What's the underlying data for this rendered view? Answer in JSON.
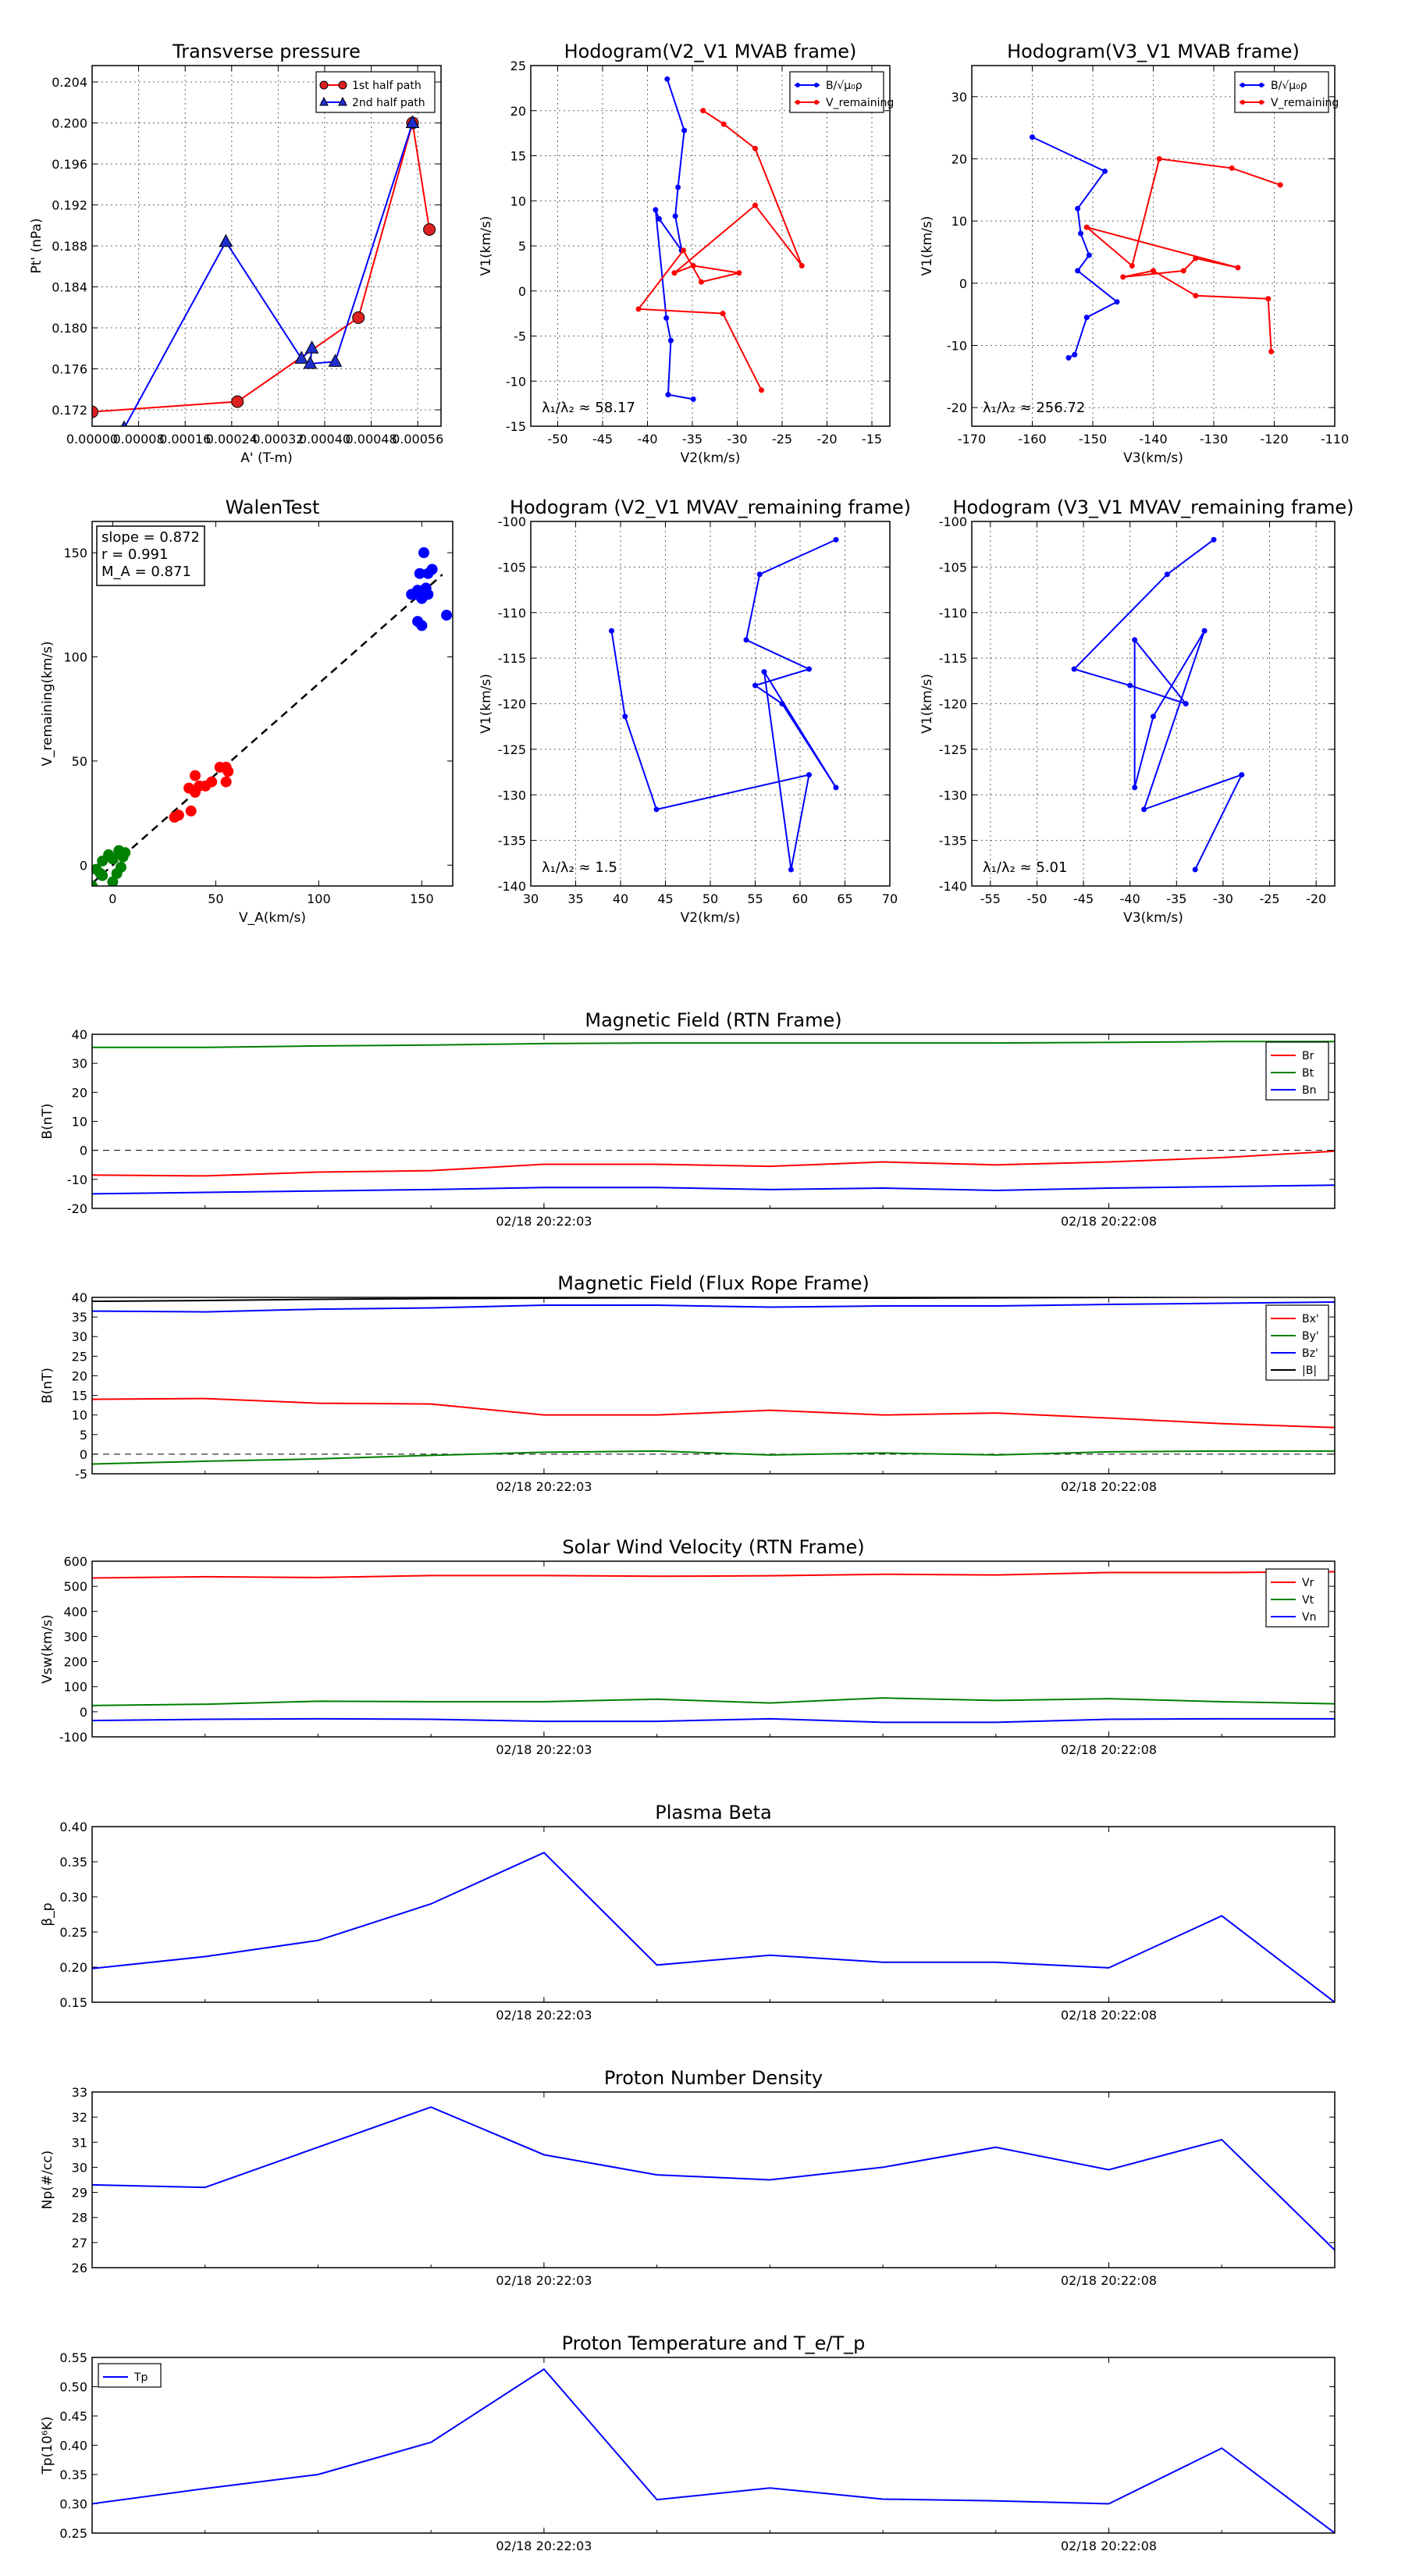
{
  "chart_data": [
    {
      "id": "tp",
      "type": "line",
      "title": "Transverse pressure",
      "xlabel": "A' (T-m)",
      "ylabel": "Pt' (nPa)",
      "xlim": [
        0.0,
        0.0006
      ],
      "ylim": [
        0.1704,
        0.2056
      ],
      "xticks": [
        "0.00000",
        "0.00008",
        "0.00016",
        "0.00024",
        "0.00032",
        "0.00040",
        "0.00048",
        "0.00056"
      ],
      "yticks": [
        "0.172",
        "0.176",
        "0.180",
        "0.184",
        "0.188",
        "0.192",
        "0.196",
        "0.200",
        "0.204"
      ],
      "grid": true,
      "legend": "top-right",
      "series": [
        {
          "name": "1st half path",
          "color": "#ff0000",
          "marker": "circle",
          "x": [
            0.0,
            0.00025,
            0.000458,
            0.000551,
            0.00058
          ],
          "y": [
            0.1718,
            0.1728,
            0.181,
            0.2,
            0.1896
          ]
        },
        {
          "name": "2nd half path",
          "color": "#0000ff",
          "marker": "triangle",
          "x": [
            5.5e-05,
            0.00023,
            0.00036,
            0.000378,
            0.000375,
            0.000418,
            0.000551
          ],
          "y": [
            0.1702,
            0.1884,
            0.177,
            0.178,
            0.1765,
            0.1767,
            0.2
          ]
        }
      ]
    },
    {
      "id": "h1",
      "type": "line",
      "title": "Hodogram(V2_V1 MVAB frame)",
      "xlabel": "V2(km/s)",
      "ylabel": "V1(km/s)",
      "xlim": [
        -53,
        -13
      ],
      "ylim": [
        -15,
        25
      ],
      "xticks": [
        -50,
        -45,
        -40,
        -35,
        -30,
        -25,
        -20,
        -15
      ],
      "yticks": [
        -15,
        -10,
        -5,
        0,
        5,
        10,
        15,
        20,
        25
      ],
      "grid": true,
      "legend": "top-right",
      "annotation": "λ₁/λ₂ ≈ 58.17",
      "series": [
        {
          "name": "B/√μ₀ρ",
          "color": "#0000ff",
          "x": [
            -37.8,
            -35.9,
            -36.6,
            -36.9,
            -36.2,
            -38.7,
            -39.1,
            -37.9,
            -37.4,
            -37.7,
            -34.9
          ],
          "y": [
            23.5,
            17.8,
            11.5,
            8.3,
            4.5,
            8.0,
            9.0,
            -3.0,
            -5.5,
            -11.5,
            -12.0
          ]
        },
        {
          "name": "V_remaining",
          "color": "#ff0000",
          "x": [
            -33.8,
            -31.5,
            -28.0,
            -22.8,
            -28.0,
            -37.0,
            -34.9,
            -29.8,
            -34.0,
            -36.0,
            -41.0,
            -31.6,
            -27.3
          ],
          "y": [
            20.0,
            18.5,
            15.8,
            2.8,
            9.5,
            2.0,
            2.8,
            2.0,
            1.0,
            4.5,
            -2.0,
            -2.5,
            -11.0
          ]
        }
      ]
    },
    {
      "id": "h2",
      "type": "line",
      "title": "Hodogram(V3_V1 MVAB frame)",
      "xlabel": "V3(km/s)",
      "ylabel": "V1(km/s)",
      "xlim": [
        -170,
        -110
      ],
      "ylim": [
        -23,
        35
      ],
      "xticks": [
        -170,
        -160,
        -150,
        -140,
        -130,
        -120,
        -110
      ],
      "yticks": [
        -20,
        -10,
        0,
        10,
        20,
        30
      ],
      "grid": true,
      "legend": "top-right",
      "annotation": "λ₁/λ₂ ≈ 256.72",
      "series": [
        {
          "name": "B/√μ₀ρ",
          "color": "#0000ff",
          "x": [
            -160,
            -148,
            -152.5,
            -152.0,
            -150.6,
            -152.5,
            -146,
            -151,
            -153,
            -154
          ],
          "y": [
            23.5,
            18,
            12,
            8,
            4.5,
            2,
            -3,
            -5.5,
            -11.5,
            -12
          ]
        },
        {
          "name": "V_remaining",
          "color": "#ff0000",
          "x": [
            -119,
            -127,
            -139,
            -143.5,
            -151,
            -126,
            -133,
            -135,
            -145,
            -140,
            -133,
            -121,
            -120.5
          ],
          "y": [
            15.8,
            18.5,
            20,
            2.8,
            9,
            2.5,
            4,
            2,
            1,
            2,
            -2,
            -2.5,
            -11
          ]
        }
      ]
    },
    {
      "id": "wt",
      "type": "scatter",
      "title": "WalenTest",
      "xlabel": "V_A(km/s)",
      "ylabel": "V_remaining(km/s)",
      "xlim": [
        -10,
        165
      ],
      "ylim": [
        -10,
        165
      ],
      "xticks": [
        0,
        50,
        100,
        150
      ],
      "yticks": [
        0,
        50,
        100,
        150
      ],
      "grid": false,
      "stats": [
        "slope = 0.872",
        "r = 0.991",
        "M_A = 0.871"
      ],
      "fit": {
        "slope": 0.872,
        "x": [
          -10,
          160
        ]
      },
      "series": [
        {
          "color": "#0000ff",
          "x": [
            145,
            148,
            150,
            152,
            148,
            150,
            153,
            155,
            151,
            162,
            147,
            149,
            153
          ],
          "y": [
            130,
            132,
            128,
            133,
            117,
            115,
            140,
            142,
            150,
            120,
            130,
            140,
            130
          ]
        },
        {
          "color": "#ff0000",
          "x": [
            30,
            32,
            38,
            40,
            42,
            45,
            48,
            52,
            55,
            56,
            55,
            40,
            37
          ],
          "y": [
            23,
            24,
            26,
            35,
            38,
            38,
            40,
            47,
            47,
            45,
            40,
            43,
            37
          ]
        },
        {
          "color": "#008000",
          "x": [
            -8,
            -5,
            -2,
            0,
            2,
            5,
            3,
            6,
            -5,
            0,
            -10,
            -6,
            4
          ],
          "y": [
            -2,
            2,
            5,
            3,
            -4,
            4,
            7,
            6,
            -5,
            -8,
            -10,
            -4,
            -1
          ]
        }
      ]
    },
    {
      "id": "h3",
      "type": "line",
      "title": "Hodogram (V2_V1 MVAV_remaining frame)",
      "xlabel": "V2(km/s)",
      "ylabel": "V1(km/s)",
      "xlim": [
        30,
        70
      ],
      "ylim": [
        -140,
        -100
      ],
      "xticks": [
        30,
        35,
        40,
        45,
        50,
        55,
        60,
        65,
        70
      ],
      "yticks": [
        -140,
        -135,
        -130,
        -125,
        -120,
        -115,
        -110,
        -105,
        -100
      ],
      "grid": true,
      "annotation": "λ₁/λ₂ ≈ 1.5",
      "series": [
        {
          "color": "#0000ff",
          "x": [
            64,
            55.5,
            54,
            61,
            55,
            58,
            64,
            56,
            59,
            61,
            44,
            40.5,
            39
          ],
          "y": [
            -102,
            -105.8,
            -113,
            -116.2,
            -118,
            -120,
            -129.2,
            -116.5,
            -138.2,
            -127.8,
            -131.6,
            -121.4,
            -112
          ]
        }
      ]
    },
    {
      "id": "h4",
      "type": "line",
      "title": "Hodogram (V3_V1 MVAV_remaining frame)",
      "xlabel": "V3(km/s)",
      "ylabel": "V1(km/s)",
      "xlim": [
        -57,
        -18
      ],
      "ylim": [
        -140,
        -100
      ],
      "xticks": [
        -55,
        -50,
        -45,
        -40,
        -35,
        -30,
        -25,
        -20
      ],
      "yticks": [
        -140,
        -135,
        -130,
        -125,
        -120,
        -115,
        -110,
        -105,
        -100
      ],
      "grid": true,
      "annotation": "λ₁/λ₂ ≈ 5.01",
      "series": [
        {
          "color": "#0000ff",
          "x": [
            -31,
            -36,
            -46,
            -40,
            -34,
            -39.5,
            -39.5,
            -37.5,
            -32,
            -38.5,
            -28,
            -33
          ],
          "y": [
            -102,
            -105.8,
            -116.2,
            -118,
            -120,
            -113,
            -129.2,
            -121.4,
            -112,
            -131.6,
            -127.8,
            -138.2
          ]
        }
      ]
    },
    {
      "id": "mag_rtn",
      "type": "line",
      "title": "Magnetic Field (RTN Frame)",
      "xlabel": "",
      "ylabel": "B(nT)",
      "xlim": [
        0,
        11
      ],
      "ylim": [
        -20,
        40
      ],
      "xticks": [
        {
          "x": 4,
          "label": "02/18 20:22:03"
        },
        {
          "x": 9,
          "label": "02/18 20:22:08"
        }
      ],
      "yticks": [
        -20,
        -10,
        0,
        10,
        20,
        30,
        40
      ],
      "zero_line": true,
      "legend": "right",
      "series": [
        {
          "name": "Br",
          "color": "#ff0000",
          "x": [
            0,
            1,
            2,
            3,
            4,
            5,
            6,
            7,
            8,
            9,
            10,
            11
          ],
          "y": [
            -8.5,
            -8.8,
            -7.5,
            -7,
            -4.8,
            -4.8,
            -5.5,
            -4,
            -5,
            -4,
            -2.5,
            -0.3
          ]
        },
        {
          "name": "Bt",
          "color": "#008000",
          "x": [
            0,
            1,
            2,
            3,
            4,
            5,
            6,
            7,
            8,
            9,
            10,
            11
          ],
          "y": [
            35.5,
            35.5,
            36,
            36.3,
            36.8,
            37,
            37,
            37,
            37,
            37.2,
            37.5,
            37.5
          ]
        },
        {
          "name": "Bn",
          "color": "#0000ff",
          "x": [
            0,
            1,
            2,
            3,
            4,
            5,
            6,
            7,
            8,
            9,
            10,
            11
          ],
          "y": [
            -15,
            -14.5,
            -14,
            -13.5,
            -12.8,
            -12.8,
            -13.5,
            -13,
            -13.8,
            -13,
            -12.5,
            -12
          ]
        }
      ]
    },
    {
      "id": "mag_fr",
      "type": "line",
      "title": "Magnetic Field (Flux Rope Frame)",
      "xlabel": "",
      "ylabel": "B(nT)",
      "xlim": [
        0,
        11
      ],
      "ylim": [
        -5,
        40
      ],
      "xticks": [
        {
          "x": 4,
          "label": "02/18 20:22:03"
        },
        {
          "x": 9,
          "label": "02/18 20:22:08"
        }
      ],
      "yticks": [
        -5,
        0,
        5,
        10,
        15,
        20,
        25,
        30,
        35,
        40
      ],
      "zero_line": true,
      "legend": "right",
      "series": [
        {
          "name": "Bx'",
          "color": "#ff0000",
          "x": [
            0,
            1,
            2,
            3,
            4,
            5,
            6,
            7,
            8,
            9,
            10,
            11
          ],
          "y": [
            14,
            14.2,
            13,
            12.8,
            10,
            10,
            11.2,
            10,
            10.5,
            9.2,
            7.8,
            6.8
          ]
        },
        {
          "name": "By'",
          "color": "#008000",
          "x": [
            0,
            1,
            2,
            3,
            4,
            5,
            6,
            7,
            8,
            9,
            10,
            11
          ],
          "y": [
            -2.5,
            -1.8,
            -1.2,
            -0.3,
            0.5,
            0.8,
            -0.2,
            0.3,
            -0.2,
            0.6,
            0.8,
            0.8
          ]
        },
        {
          "name": "Bz'",
          "color": "#0000ff",
          "x": [
            0,
            1,
            2,
            3,
            4,
            5,
            6,
            7,
            8,
            9,
            10,
            11
          ],
          "y": [
            36.5,
            36.3,
            37,
            37.3,
            38,
            38,
            37.5,
            37.8,
            37.8,
            38.2,
            38.5,
            38.8
          ]
        },
        {
          "name": "|B|",
          "color": "#000000",
          "x": [
            0,
            1,
            2,
            3,
            4,
            5,
            6,
            7,
            8,
            9,
            10,
            11
          ],
          "y": [
            39,
            39.2,
            39.5,
            39.7,
            39.8,
            39.9,
            39.8,
            39.8,
            39.9,
            40,
            40.1,
            40.2
          ]
        }
      ]
    },
    {
      "id": "vel",
      "type": "line",
      "title": "Solar Wind Velocity (RTN Frame)",
      "xlabel": "",
      "ylabel": "Vsw(km/s)",
      "xlim": [
        0,
        11
      ],
      "ylim": [
        -100,
        600
      ],
      "xticks": [
        {
          "x": 4,
          "label": "02/18 20:22:03"
        },
        {
          "x": 9,
          "label": "02/18 20:22:08"
        }
      ],
      "yticks": [
        -100,
        0,
        100,
        200,
        300,
        400,
        500,
        600
      ],
      "legend": "right",
      "series": [
        {
          "name": "Vr",
          "color": "#ff0000",
          "x": [
            0,
            1,
            2,
            3,
            4,
            5,
            6,
            7,
            8,
            9,
            10,
            11
          ],
          "y": [
            533,
            538,
            535,
            543,
            543,
            540,
            542,
            548,
            545,
            555,
            555,
            558
          ]
        },
        {
          "name": "Vt",
          "color": "#008000",
          "x": [
            0,
            1,
            2,
            3,
            4,
            5,
            6,
            7,
            8,
            9,
            10,
            11
          ],
          "y": [
            25,
            30,
            42,
            40,
            40,
            50,
            35,
            55,
            45,
            52,
            40,
            32
          ]
        },
        {
          "name": "Vn",
          "color": "#0000ff",
          "x": [
            0,
            1,
            2,
            3,
            4,
            5,
            6,
            7,
            8,
            9,
            10,
            11
          ],
          "y": [
            -35,
            -30,
            -28,
            -30,
            -38,
            -38,
            -28,
            -42,
            -42,
            -30,
            -28,
            -28
          ]
        }
      ]
    },
    {
      "id": "beta",
      "type": "line",
      "title": "Plasma Beta",
      "xlabel": "",
      "ylabel": "β_p",
      "xlim": [
        0,
        11
      ],
      "ylim": [
        0.15,
        0.4
      ],
      "xticks": [
        {
          "x": 4,
          "label": "02/18 20:22:03"
        },
        {
          "x": 9,
          "label": "02/18 20:22:08"
        }
      ],
      "yticks": [
        "0.15",
        "0.20",
        "0.25",
        "0.30",
        "0.35",
        "0.40"
      ],
      "series": [
        {
          "color": "#0000ff",
          "x": [
            0,
            1,
            2,
            3,
            4,
            5,
            6,
            7,
            8,
            9,
            10,
            11
          ],
          "y": [
            0.198,
            0.215,
            0.238,
            0.29,
            0.363,
            0.203,
            0.217,
            0.207,
            0.207,
            0.199,
            0.273,
            0.15
          ]
        }
      ]
    },
    {
      "id": "np",
      "type": "line",
      "title": "Proton Number Density",
      "xlabel": "",
      "ylabel": "Np(#/cc)",
      "xlim": [
        0,
        11
      ],
      "ylim": [
        26,
        33
      ],
      "xticks": [
        {
          "x": 4,
          "label": "02/18 20:22:03"
        },
        {
          "x": 9,
          "label": "02/18 20:22:08"
        }
      ],
      "yticks": [
        26,
        27,
        28,
        29,
        30,
        31,
        32,
        33
      ],
      "series": [
        {
          "color": "#0000ff",
          "x": [
            0,
            1,
            2,
            3,
            4,
            5,
            6,
            7,
            8,
            9,
            10,
            11
          ],
          "y": [
            29.3,
            29.2,
            30.8,
            32.4,
            30.5,
            29.7,
            29.5,
            30.0,
            30.8,
            29.9,
            31.1,
            26.7
          ]
        }
      ]
    },
    {
      "id": "tpp",
      "type": "line",
      "title": "Proton Temperature and T_e/T_p",
      "xlabel": "",
      "ylabel": "Tp(10⁶K)",
      "xlim": [
        0,
        11
      ],
      "ylim": [
        0.25,
        0.55
      ],
      "xticks": [
        {
          "x": 4,
          "label": "02/18 20:22:03"
        },
        {
          "x": 9,
          "label": "02/18 20:22:08"
        }
      ],
      "yticks": [
        "0.25",
        "0.30",
        "0.35",
        "0.40",
        "0.45",
        "0.50",
        "0.55"
      ],
      "legend": "top-left",
      "series": [
        {
          "name": "Tp",
          "color": "#0000ff",
          "x": [
            0,
            1,
            2,
            3,
            4,
            5,
            6,
            7,
            8,
            9,
            10,
            11
          ],
          "y": [
            0.3,
            0.326,
            0.35,
            0.405,
            0.53,
            0.307,
            0.327,
            0.308,
            0.305,
            0.3,
            0.395,
            0.25
          ]
        }
      ]
    }
  ]
}
